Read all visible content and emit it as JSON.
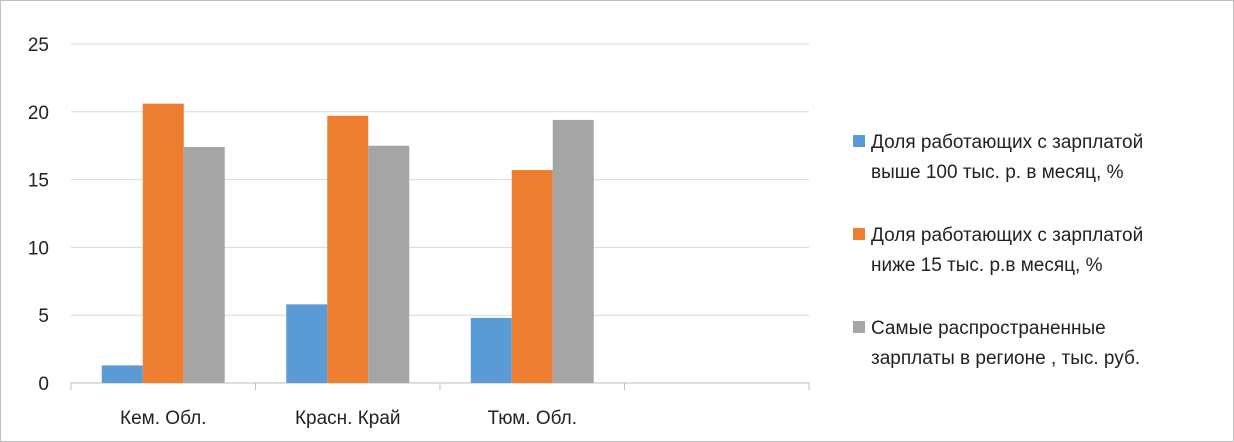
{
  "chart_data": {
    "type": "bar",
    "categories": [
      "Кем. Обл.",
      "Красн. Край",
      "Тюм. Обл.",
      ""
    ],
    "series": [
      {
        "name": "Доля работающих с зарплатой выше 100 тыс. р. в месяц, %",
        "legend_lines": [
          "Доля работающих с зарплатой",
          "выше 100 тыс. р. в месяц, %"
        ],
        "color": "#5b9bd5",
        "values": [
          1.3,
          5.8,
          4.8,
          null
        ]
      },
      {
        "name": "Доля работающих с зарплатой ниже 15 тыс. р.в месяц, %",
        "legend_lines": [
          "Доля работающих с зарплатой",
          "ниже 15 тыс. р.в месяц, %"
        ],
        "color": "#ed7d31",
        "values": [
          20.6,
          19.7,
          15.7,
          null
        ]
      },
      {
        "name": "Самые распространенные зарплаты в регионе , тыс. руб.",
        "legend_lines": [
          "Самые распространенные",
          "зарплаты в регионе , тыс. руб."
        ],
        "color": "#a5a5a5",
        "values": [
          17.4,
          17.5,
          19.4,
          null
        ]
      }
    ],
    "yticks": [
      0,
      5,
      10,
      15,
      20,
      25
    ],
    "ylim": [
      0,
      25
    ],
    "grid": true,
    "legend_position": "right"
  }
}
